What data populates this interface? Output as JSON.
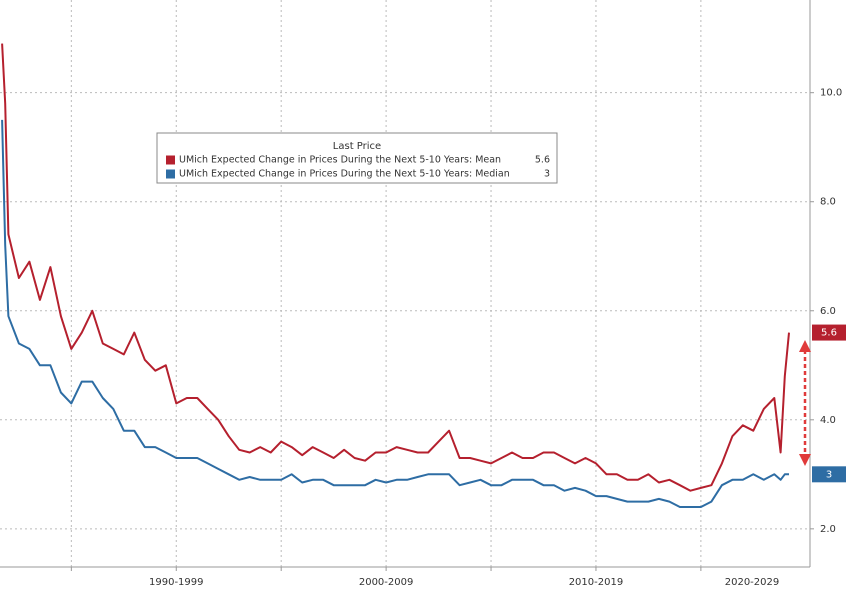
{
  "chart_data": {
    "type": "line",
    "legend_title": "Last Price",
    "x": [
      1986.7,
      1986.85,
      1987,
      1987.5,
      1988,
      1988.5,
      1989,
      1989.5,
      1990,
      1990.5,
      1991,
      1991.5,
      1992,
      1992.5,
      1993,
      1993.5,
      1994,
      1994.5,
      1995,
      1995.5,
      1996,
      1996.5,
      1997,
      1997.5,
      1998,
      1998.5,
      1999,
      1999.5,
      2000,
      2000.5,
      2001,
      2001.5,
      2002,
      2002.5,
      2003,
      2003.5,
      2004,
      2004.5,
      2005,
      2005.5,
      2006,
      2006.5,
      2007,
      2007.5,
      2008,
      2008.5,
      2009,
      2009.5,
      2010,
      2010.5,
      2011,
      2011.5,
      2012,
      2012.5,
      2013,
      2013.5,
      2014,
      2014.5,
      2015,
      2015.5,
      2016,
      2016.5,
      2017,
      2017.5,
      2018,
      2018.5,
      2019,
      2019.5,
      2020,
      2020.5,
      2021,
      2021.5,
      2022,
      2022.5,
      2023,
      2023.5,
      2023.8,
      2024,
      2024.2
    ],
    "series": [
      {
        "name": "UMich Expected Change in Prices During the Next 5-10 Years: Mean",
        "color": "#b5202e",
        "last_value": 5.6,
        "values": [
          10.9,
          9.8,
          7.4,
          6.6,
          6.9,
          6.2,
          6.8,
          5.9,
          5.3,
          5.6,
          6.0,
          5.4,
          5.3,
          5.2,
          5.6,
          5.1,
          4.9,
          5.0,
          4.3,
          4.4,
          4.4,
          4.2,
          4.0,
          3.7,
          3.45,
          3.4,
          3.5,
          3.4,
          3.6,
          3.5,
          3.35,
          3.5,
          3.4,
          3.3,
          3.45,
          3.3,
          3.25,
          3.4,
          3.4,
          3.5,
          3.45,
          3.4,
          3.4,
          3.6,
          3.8,
          3.3,
          3.3,
          3.25,
          3.2,
          3.3,
          3.4,
          3.3,
          3.3,
          3.4,
          3.4,
          3.3,
          3.2,
          3.3,
          3.2,
          3.0,
          3.0,
          2.9,
          2.9,
          3.0,
          2.85,
          2.9,
          2.8,
          2.7,
          2.75,
          2.8,
          3.2,
          3.7,
          3.9,
          3.8,
          4.2,
          4.4,
          3.4,
          4.8,
          5.6
        ]
      },
      {
        "name": "UMich Expected Change in Prices During the Next 5-10 Years: Median",
        "color": "#2e6da4",
        "last_value": 3.0,
        "values": [
          9.5,
          7.2,
          5.9,
          5.4,
          5.3,
          5.0,
          5.0,
          4.5,
          4.3,
          4.7,
          4.7,
          4.4,
          4.2,
          3.8,
          3.8,
          3.5,
          3.5,
          3.4,
          3.3,
          3.3,
          3.3,
          3.2,
          3.1,
          3.0,
          2.9,
          2.95,
          2.9,
          2.9,
          2.9,
          3.0,
          2.85,
          2.9,
          2.9,
          2.8,
          2.8,
          2.8,
          2.8,
          2.9,
          2.85,
          2.9,
          2.9,
          2.95,
          3.0,
          3.0,
          3.0,
          2.8,
          2.85,
          2.9,
          2.8,
          2.8,
          2.9,
          2.9,
          2.9,
          2.8,
          2.8,
          2.7,
          2.75,
          2.7,
          2.6,
          2.6,
          2.55,
          2.5,
          2.5,
          2.5,
          2.55,
          2.5,
          2.4,
          2.4,
          2.4,
          2.5,
          2.8,
          2.9,
          2.9,
          3.0,
          2.9,
          3.0,
          2.9,
          3.0,
          3.0
        ]
      }
    ],
    "xlim": [
      1986.6,
      2025.2
    ],
    "xticks": [
      {
        "value": 1995,
        "label": "1990-1999"
      },
      {
        "value": 2005,
        "label": "2000-2009"
      },
      {
        "value": 2015,
        "label": "2010-2019"
      },
      {
        "value": 2025,
        "label": "2020-2029"
      }
    ],
    "xgrid": [
      1990,
      1995,
      2000,
      2005,
      2010,
      2015,
      2020
    ],
    "ylim": [
      1.3,
      11.7
    ],
    "yticks": [
      {
        "value": 2,
        "label": "2.0"
      },
      {
        "value": 4,
        "label": "4.0"
      },
      {
        "value": 6,
        "label": "6.0"
      },
      {
        "value": 8,
        "label": "8.0"
      },
      {
        "value": 10,
        "label": "10.0"
      }
    ],
    "grid": true
  }
}
